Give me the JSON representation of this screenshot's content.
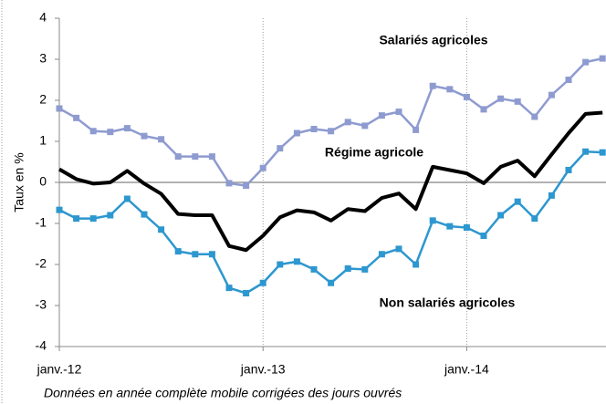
{
  "chart_data": {
    "type": "line",
    "y_label": "Taux en %",
    "note": "Données en année complète mobile corrigées des jours ouvrés",
    "categories": [
      "janv.-12",
      null,
      null,
      null,
      null,
      null,
      null,
      null,
      null,
      null,
      null,
      null,
      "janv.-13",
      null,
      null,
      null,
      null,
      null,
      null,
      null,
      null,
      null,
      null,
      null,
      "janv.-14",
      null,
      null,
      null,
      null,
      null,
      null,
      null,
      null
    ],
    "series": [
      {
        "name": "Salariés agricoles",
        "color": "#8e9bd0",
        "markers": true,
        "values": [
          1.8,
          1.57,
          1.25,
          1.23,
          1.32,
          1.13,
          1.05,
          0.63,
          0.63,
          0.63,
          -0.02,
          -0.08,
          0.35,
          0.83,
          1.2,
          1.3,
          1.25,
          1.47,
          1.38,
          1.63,
          1.72,
          1.28,
          2.35,
          2.27,
          2.08,
          1.78,
          2.04,
          1.97,
          1.6,
          2.13,
          2.5,
          2.93,
          3.02
        ]
      },
      {
        "name": "Régime agricole",
        "color": "#000000",
        "markers": false,
        "values": [
          0.32,
          0.08,
          -0.03,
          0.0,
          0.28,
          -0.03,
          -0.28,
          -0.77,
          -0.8,
          -0.8,
          -1.55,
          -1.65,
          -1.3,
          -0.85,
          -0.68,
          -0.73,
          -0.93,
          -0.65,
          -0.7,
          -0.38,
          -0.27,
          -0.65,
          0.38,
          0.3,
          0.22,
          -0.02,
          0.38,
          0.53,
          0.15,
          0.68,
          1.2,
          1.67,
          1.7
        ]
      },
      {
        "name": "Non salariés agricoles",
        "color": "#2d97cf",
        "markers": true,
        "values": [
          -0.67,
          -0.88,
          -0.88,
          -0.8,
          -0.4,
          -0.78,
          -1.15,
          -1.68,
          -1.75,
          -1.75,
          -2.57,
          -2.7,
          -2.45,
          -2.0,
          -1.93,
          -2.12,
          -2.45,
          -2.1,
          -2.12,
          -1.75,
          -1.62,
          -2.0,
          -0.93,
          -1.07,
          -1.1,
          -1.3,
          -0.8,
          -0.47,
          -0.88,
          -0.32,
          0.3,
          0.75,
          0.73
        ]
      }
    ],
    "ylim": [
      -4,
      4
    ],
    "yticks": [
      -4,
      -3,
      -2,
      -1,
      0,
      1,
      2,
      3,
      4
    ]
  }
}
